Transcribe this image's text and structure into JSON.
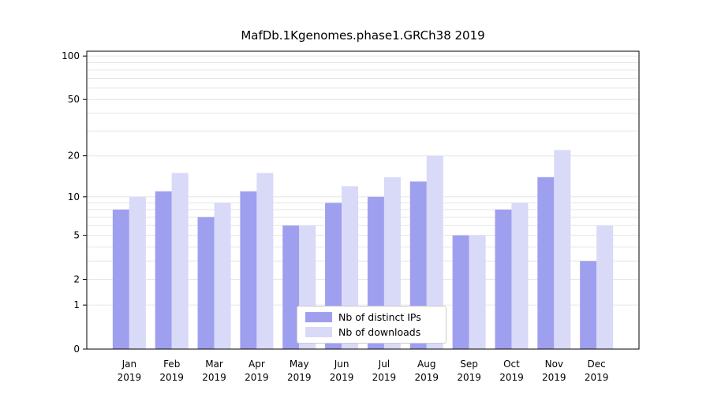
{
  "chart_data": {
    "type": "bar",
    "title": "MafDb.1Kgenomes.phase1.GRCh38 2019",
    "scale": "log1p",
    "ymax": 108,
    "ylim": [
      0,
      108
    ],
    "yticks": [
      0,
      1,
      2,
      5,
      10,
      20,
      50,
      100
    ],
    "gridlines": [
      1,
      2,
      3,
      4,
      5,
      6,
      7,
      8,
      9,
      10,
      20,
      30,
      40,
      50,
      60,
      70,
      80,
      90,
      100
    ],
    "grid_on": true,
    "legend_position": "lower center",
    "categories": [
      {
        "month": "Jan",
        "year": "2019"
      },
      {
        "month": "Feb",
        "year": "2019"
      },
      {
        "month": "Mar",
        "year": "2019"
      },
      {
        "month": "Apr",
        "year": "2019"
      },
      {
        "month": "May",
        "year": "2019"
      },
      {
        "month": "Jun",
        "year": "2019"
      },
      {
        "month": "Jul",
        "year": "2019"
      },
      {
        "month": "Aug",
        "year": "2019"
      },
      {
        "month": "Sep",
        "year": "2019"
      },
      {
        "month": "Oct",
        "year": "2019"
      },
      {
        "month": "Nov",
        "year": "2019"
      },
      {
        "month": "Dec",
        "year": "2019"
      }
    ],
    "series": [
      {
        "name": "Nb of distinct IPs",
        "color": "#9f9ff0",
        "values": [
          8,
          11,
          7,
          11,
          6,
          9,
          10,
          13,
          5,
          8,
          14,
          3
        ]
      },
      {
        "name": "Nb of downloads",
        "color": "#d9d9f8",
        "values": [
          10,
          15,
          9,
          15,
          6,
          12,
          14,
          20,
          5,
          9,
          22,
          6
        ]
      }
    ],
    "background": "#ffffff",
    "axis_color": "#000000",
    "grid_color": "#e6e6e6",
    "tick_label_color": "#000000"
  }
}
